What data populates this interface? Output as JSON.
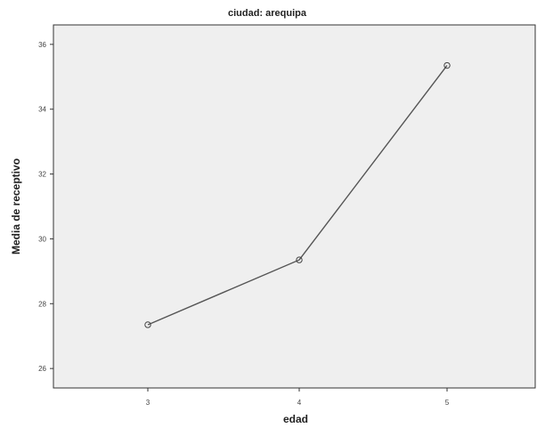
{
  "chart_data": {
    "type": "line",
    "title": "ciudad: arequipa",
    "xlabel": "edad",
    "ylabel": "Media de receptivo",
    "categories": [
      "3",
      "4",
      "5"
    ],
    "x": [
      3,
      4,
      5
    ],
    "series": [
      {
        "values": [
          27.35,
          29.35,
          35.35
        ]
      }
    ],
    "ylim": [
      25.4,
      36.6
    ],
    "yticks": [
      26,
      28,
      30,
      32,
      34,
      36
    ],
    "grid": false,
    "legend": "none",
    "colors": {
      "plot_background": "#efefef",
      "line": "#555555",
      "frame": "#333333"
    }
  }
}
